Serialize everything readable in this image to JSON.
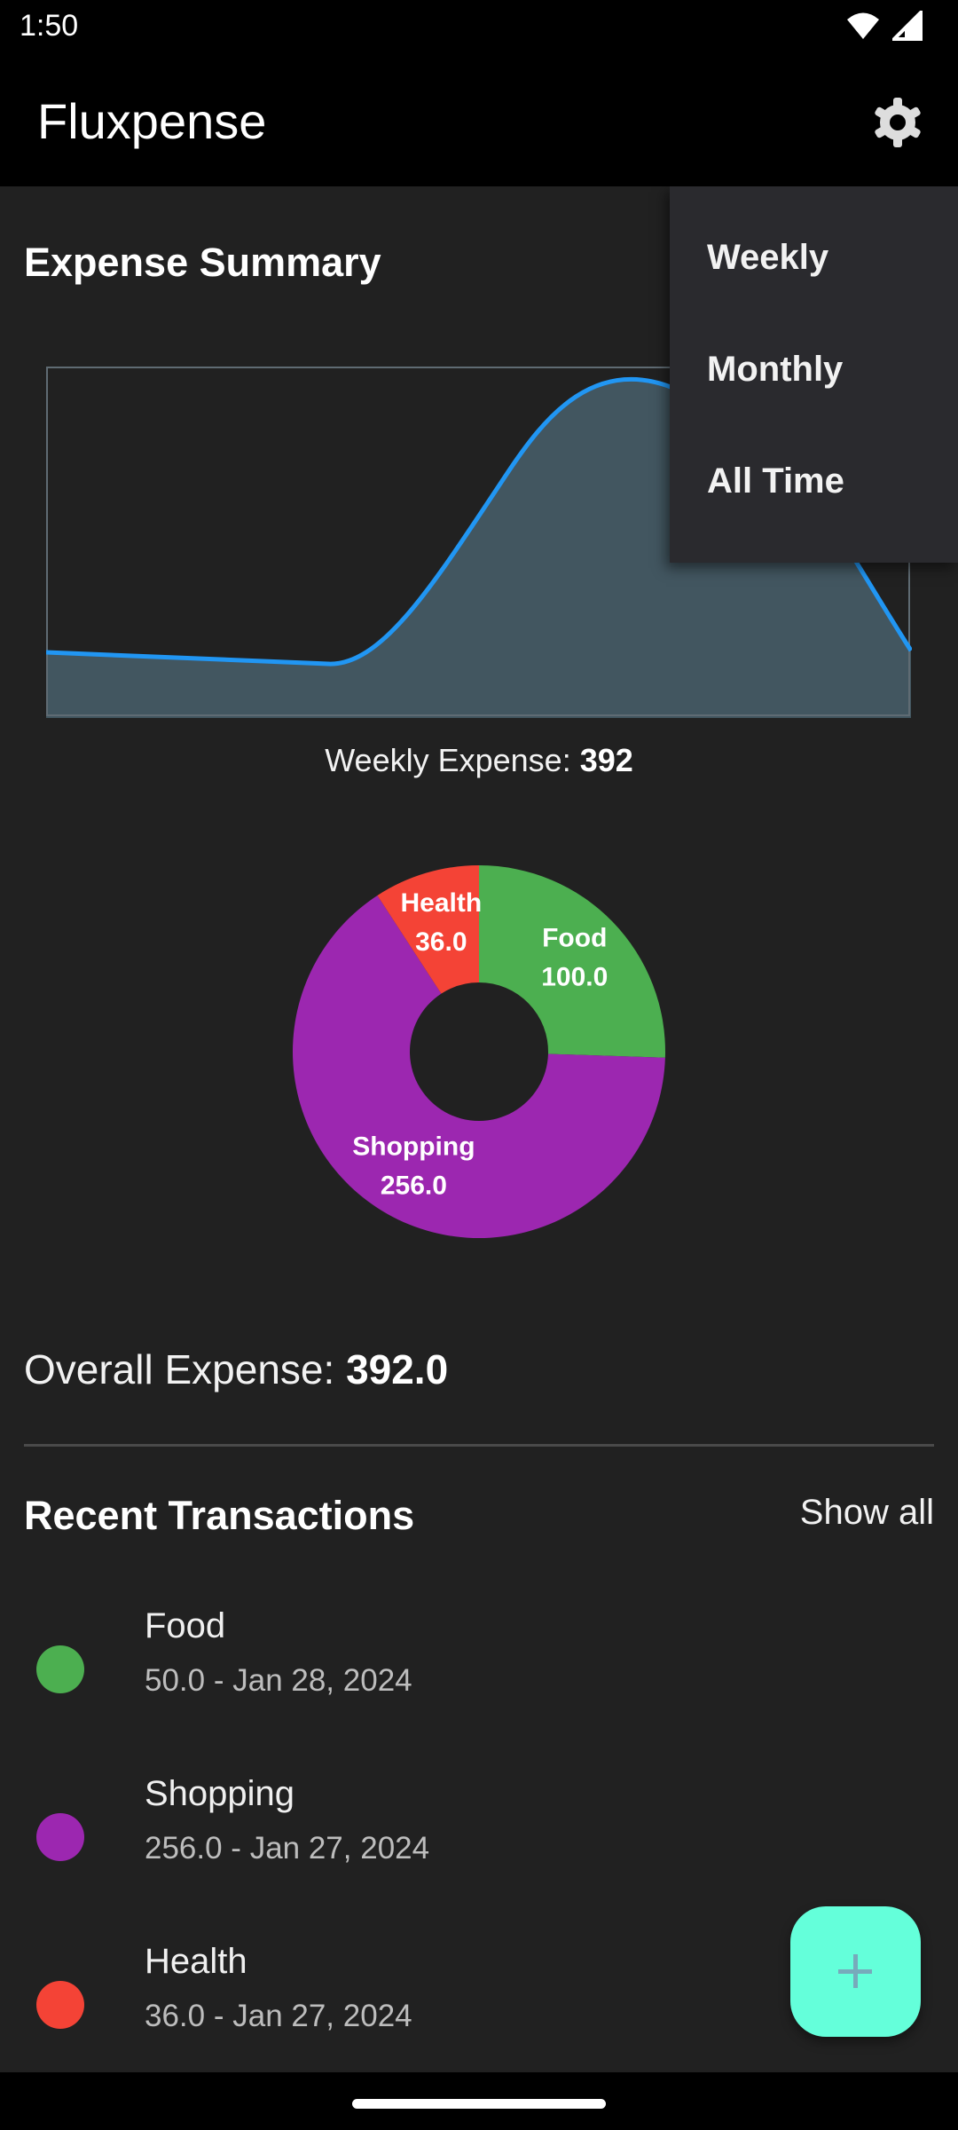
{
  "status": {
    "time": "1:50"
  },
  "app": {
    "title": "Fluxpense"
  },
  "summary": {
    "title": "Expense Summary",
    "weekly_label": "Weekly Expense: ",
    "weekly_value": "392"
  },
  "pie": {
    "slices": [
      {
        "name": "Food",
        "value": 100.0,
        "value_label": "100.0",
        "color": "#4CAF50"
      },
      {
        "name": "Shopping",
        "value": 256.0,
        "value_label": "256.0",
        "color": "#9C27B0"
      },
      {
        "name": "Health",
        "value": 36.0,
        "value_label": "36.0",
        "color": "#F44336"
      }
    ]
  },
  "overall": {
    "label": "Overall Expense: ",
    "value": "392.0"
  },
  "recent": {
    "title": "Recent Transactions",
    "show_all": "Show all",
    "items": [
      {
        "name": "Food",
        "meta": "50.0 - Jan 28, 2024",
        "color": "#4CAF50"
      },
      {
        "name": "Shopping",
        "meta": "256.0 - Jan 27, 2024",
        "color": "#9C27B0"
      },
      {
        "name": "Health",
        "meta": "36.0 - Jan 27, 2024",
        "color": "#F44336"
      }
    ]
  },
  "menu": {
    "items": [
      "Weekly",
      "Monthly",
      "All Time"
    ]
  },
  "colors": {
    "accent": "#2196F3",
    "fab": "#64FFDA"
  }
}
